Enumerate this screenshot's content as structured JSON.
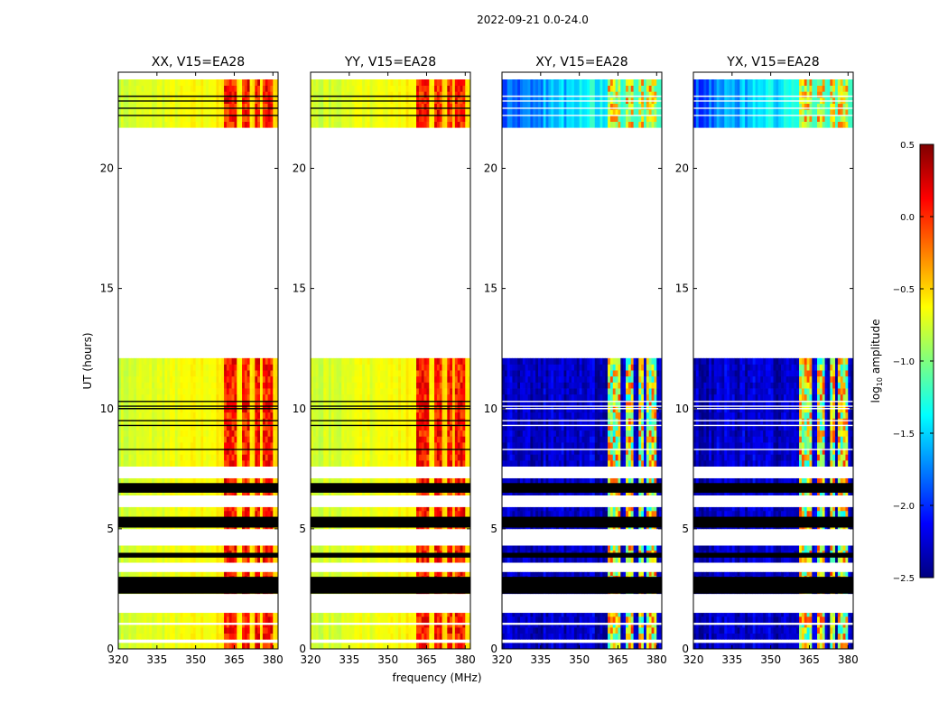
{
  "figure": {
    "suptitle": "2022-09-21 0.0-24.0",
    "xlabel": "frequency (MHz)",
    "ylabel": "UT (hours)"
  },
  "chart_data": {
    "type": "heatmap",
    "x_range": [
      320,
      382
    ],
    "y_range": [
      0,
      24
    ],
    "x_ticks": [
      "320",
      "335",
      "350",
      "365",
      "380"
    ],
    "y_ticks": [
      "0",
      "5",
      "10",
      "15",
      "20"
    ],
    "x_tick_values": [
      320,
      335,
      350,
      365,
      380
    ],
    "y_tick_values": [
      0,
      5,
      10,
      15,
      20
    ],
    "panels": [
      {
        "title": "XX, V15=EA28",
        "pol": "parallel"
      },
      {
        "title": "YY, V15=EA28",
        "pol": "parallel"
      },
      {
        "title": "XY, V15=EA28",
        "pol": "cross"
      },
      {
        "title": "YX, V15=EA28",
        "pol": "cross"
      }
    ],
    "colorbar": {
      "label": "log10 amplitude",
      "label_base": "log",
      "label_sub": "10",
      "label_rest": " amplitude",
      "range": [
        -2.5,
        0.5
      ],
      "ticks": [
        "0.5",
        "0.0",
        "−0.5",
        "−1.0",
        "−1.5",
        "−2.0",
        "−2.5"
      ],
      "tick_values": [
        0.5,
        0.0,
        -0.5,
        -1.0,
        -1.5,
        -2.0,
        -2.5
      ],
      "cmap": "jet"
    },
    "data_blocks_ut": [
      [
        0.0,
        0.25
      ],
      [
        0.4,
        1.0
      ],
      [
        1.1,
        1.5
      ],
      [
        2.3,
        3.2
      ],
      [
        3.6,
        4.3
      ],
      [
        5.0,
        5.9
      ],
      [
        6.4,
        7.1
      ],
      [
        7.6,
        12.1
      ],
      [
        21.7,
        23.7
      ]
    ],
    "black_bands_ut": [
      [
        2.3,
        3.0
      ],
      [
        3.8,
        4.0
      ],
      [
        5.05,
        5.5
      ],
      [
        6.5,
        6.9
      ]
    ],
    "gap_lines_ut": [
      8.3,
      9.3,
      9.5,
      10.0,
      10.1,
      10.3,
      22.2,
      22.5,
      22.8,
      23.0
    ],
    "rfi_channels_mhz": [
      [
        361,
        366
      ],
      [
        368,
        371
      ],
      [
        373,
        375
      ],
      [
        376,
        380
      ]
    ]
  }
}
